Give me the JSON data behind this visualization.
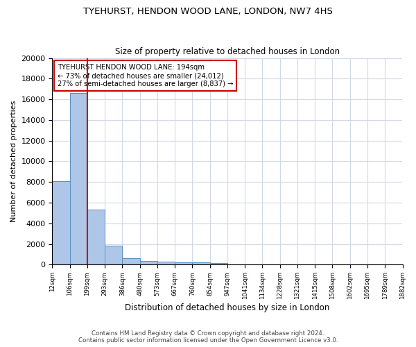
{
  "title": "TYEHURST, HENDON WOOD LANE, LONDON, NW7 4HS",
  "subtitle": "Size of property relative to detached houses in London",
  "xlabel": "Distribution of detached houses by size in London",
  "ylabel": "Number of detached properties",
  "tick_labels": [
    "12sqm",
    "106sqm",
    "199sqm",
    "293sqm",
    "386sqm",
    "480sqm",
    "573sqm",
    "667sqm",
    "760sqm",
    "854sqm",
    "947sqm",
    "1041sqm",
    "1134sqm",
    "1228sqm",
    "1321sqm",
    "1415sqm",
    "1508sqm",
    "1602sqm",
    "1695sqm",
    "1789sqm",
    "1882sqm"
  ],
  "bar_heights": [
    8100,
    16600,
    5300,
    1850,
    650,
    350,
    270,
    230,
    200,
    170,
    0,
    0,
    0,
    0,
    0,
    0,
    0,
    0,
    0,
    0
  ],
  "bar_color": "#aec6e8",
  "bar_edgecolor": "#5a8fc2",
  "property_bin": 2,
  "vline_color": "#cc0000",
  "annotation_text": "TYEHURST HENDON WOOD LANE: 194sqm\n← 73% of detached houses are smaller (24,012)\n27% of semi-detached houses are larger (8,837) →",
  "annotation_box_color": "#ffffff",
  "annotation_box_edgecolor": "#cc0000",
  "ylim": [
    0,
    20000
  ],
  "yticks": [
    0,
    2000,
    4000,
    6000,
    8000,
    10000,
    12000,
    14000,
    16000,
    18000,
    20000
  ],
  "footer_line1": "Contains HM Land Registry data © Crown copyright and database right 2024.",
  "footer_line2": "Contains public sector information licensed under the Open Government Licence v3.0.",
  "background_color": "#ffffff",
  "grid_color": "#d0d8e8",
  "figsize": [
    6.0,
    5.0
  ],
  "dpi": 100
}
